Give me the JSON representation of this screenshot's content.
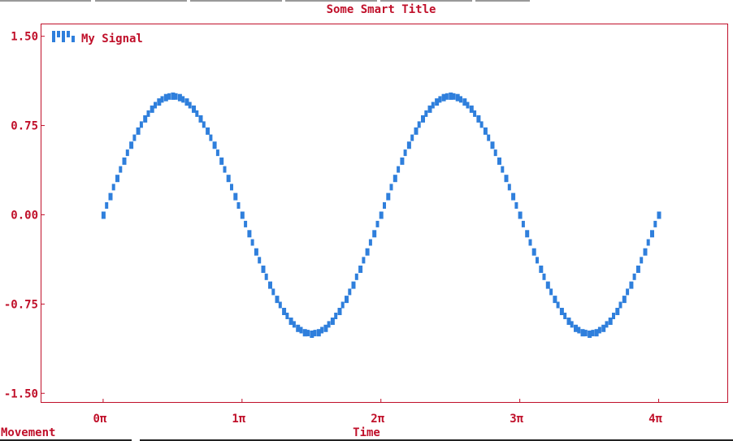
{
  "window": {
    "status_left": "Movement"
  },
  "chart_data": {
    "type": "line",
    "title": "Some Smart Title",
    "xlabel": "Time",
    "ylabel": "",
    "xlim": [
      -0.45,
      4.5
    ],
    "ylim": [
      -1.58,
      1.6
    ],
    "x_ticks": [
      0,
      1,
      2,
      3,
      4
    ],
    "x_tick_labels": [
      "0π",
      "1π",
      "2π",
      "3π",
      "4π"
    ],
    "y_ticks": [
      1.5,
      0.75,
      0.0,
      -0.75,
      -1.5
    ],
    "y_tick_labels": [
      "1.50",
      "0.75",
      "0.00",
      "-0.75",
      "-1.50"
    ],
    "legend_position": "top-left",
    "grid": false,
    "colors": {
      "axis": "#c0102a",
      "series": "#2f7fdc"
    },
    "series": [
      {
        "name": "My Signal",
        "function": "sin(pi*x)",
        "x": [
          0,
          0.05,
          0.1,
          0.15,
          0.2,
          0.25,
          0.3,
          0.35,
          0.4,
          0.45,
          0.5,
          0.55,
          0.6,
          0.65,
          0.7,
          0.75,
          0.8,
          0.85,
          0.9,
          0.95,
          1.0,
          1.05,
          1.1,
          1.15,
          1.2,
          1.25,
          1.3,
          1.35,
          1.4,
          1.45,
          1.5,
          1.55,
          1.6,
          1.65,
          1.7,
          1.75,
          1.8,
          1.85,
          1.9,
          1.95,
          2.0,
          2.05,
          2.1,
          2.15,
          2.2,
          2.25,
          2.3,
          2.35,
          2.4,
          2.45,
          2.5,
          2.55,
          2.6,
          2.65,
          2.7,
          2.75,
          2.8,
          2.85,
          2.9,
          2.95,
          3.0,
          3.05,
          3.1,
          3.15,
          3.2,
          3.25,
          3.3,
          3.35,
          3.4,
          3.45,
          3.5,
          3.55,
          3.6,
          3.65,
          3.7,
          3.75,
          3.8,
          3.85,
          3.9,
          3.95,
          4.0
        ],
        "y": [
          0.0,
          0.156,
          0.309,
          0.454,
          0.588,
          0.707,
          0.809,
          0.891,
          0.951,
          0.988,
          1.0,
          0.988,
          0.951,
          0.891,
          0.809,
          0.707,
          0.588,
          0.454,
          0.309,
          0.156,
          0.0,
          -0.156,
          -0.309,
          -0.454,
          -0.588,
          -0.707,
          -0.809,
          -0.891,
          -0.951,
          -0.988,
          -1.0,
          -0.988,
          -0.951,
          -0.891,
          -0.809,
          -0.707,
          -0.588,
          -0.454,
          -0.309,
          -0.156,
          0.0,
          0.156,
          0.309,
          0.454,
          0.588,
          0.707,
          0.809,
          0.891,
          0.951,
          0.988,
          1.0,
          0.988,
          0.951,
          0.891,
          0.809,
          0.707,
          0.588,
          0.454,
          0.309,
          0.156,
          0.0,
          -0.156,
          -0.309,
          -0.454,
          -0.588,
          -0.707,
          -0.809,
          -0.891,
          -0.951,
          -0.988,
          -1.0,
          -0.988,
          -0.951,
          -0.891,
          -0.809,
          -0.707,
          -0.588,
          -0.454,
          -0.309,
          -0.156,
          0.0
        ]
      }
    ]
  }
}
